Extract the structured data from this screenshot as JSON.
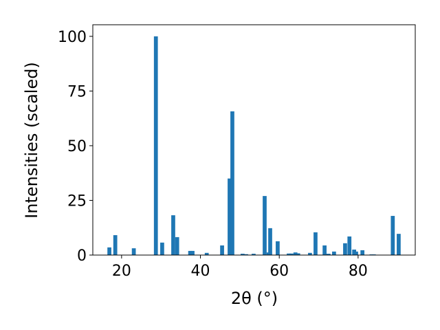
{
  "chart_data": {
    "type": "bar",
    "xlabel": "2θ (°)",
    "ylabel": "Intensities (scaled)",
    "color": "#1f77b4",
    "x": [
      16.9,
      18.4,
      23.1,
      28.7,
      30.3,
      33.1,
      34.1,
      37.4,
      38.0,
      41.6,
      45.5,
      47.4,
      48.1,
      50.7,
      51.6,
      53.5,
      56.3,
      57.3,
      57.7,
      59.6,
      62.4,
      63.1,
      64.1,
      64.8,
      67.8,
      69.2,
      71.5,
      72.5,
      73.9,
      76.7,
      77.8,
      79.0,
      79.5,
      81.1,
      83.4,
      84.0,
      88.8,
      90.3
    ],
    "values": [
      3.5,
      9.1,
      3.1,
      100,
      5.7,
      18.2,
      8.2,
      1.9,
      1.9,
      1.0,
      4.4,
      35,
      65.7,
      0.6,
      0.4,
      0.6,
      27,
      1.2,
      12.3,
      6.3,
      0.7,
      0.7,
      1.2,
      0.8,
      1.0,
      10.4,
      4.4,
      0.6,
      1.6,
      5.4,
      8.5,
      2.5,
      1.6,
      2.2,
      0.3,
      0.3,
      17.9,
      9.7
    ],
    "xlim": [
      12.7,
      94.5
    ],
    "ylim": [
      0,
      105.3
    ],
    "xticks": [
      20,
      40,
      60,
      80
    ],
    "yticks": [
      0,
      25,
      50,
      75,
      100
    ]
  }
}
